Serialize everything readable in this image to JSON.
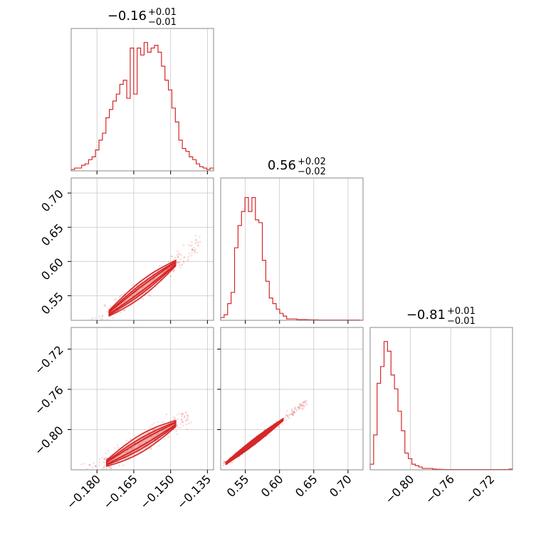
{
  "chart_data": {
    "type": "corner",
    "color": "#d62728",
    "parameters": [
      {
        "title_main": "−0.16",
        "title_plus": "+0.01",
        "title_minus": "−0.01",
        "range": [
          -0.1905,
          -0.1325
        ],
        "ticks": [
          -0.18,
          -0.165,
          -0.15,
          -0.135
        ],
        "tick_labels": [
          "−0.180",
          "−0.165",
          "−0.150",
          "−0.135"
        ]
      },
      {
        "title_main": "0.56",
        "title_plus": "+0.02",
        "title_minus": "−0.02",
        "range": [
          0.514,
          0.722
        ],
        "ticks": [
          0.55,
          0.6,
          0.65,
          0.7
        ],
        "tick_labels": [
          "0.55",
          "0.60",
          "0.65",
          "0.70"
        ]
      },
      {
        "title_main": "−0.81",
        "title_plus": "+0.01",
        "title_minus": "−0.01",
        "range": [
          -0.84,
          -0.6985
        ],
        "ticks": [
          -0.8,
          -0.76,
          -0.72
        ],
        "tick_labels": [
          "−0.80",
          "−0.76",
          "−0.72"
        ]
      }
    ],
    "histograms": [
      [
        0.01,
        0.02,
        0.02,
        0.04,
        0.05,
        0.08,
        0.1,
        0.15,
        0.22,
        0.27,
        0.38,
        0.44,
        0.5,
        0.55,
        0.62,
        0.65,
        0.52,
        0.88,
        0.55,
        0.88,
        0.83,
        0.92,
        0.85,
        0.88,
        0.9,
        0.85,
        0.75,
        0.65,
        0.58,
        0.45,
        0.35,
        0.22,
        0.16,
        0.14,
        0.1,
        0.08,
        0.05,
        0.03,
        0.02,
        0.01,
        0.02
      ],
      [
        0.02,
        0.04,
        0.12,
        0.2,
        0.52,
        0.68,
        0.78,
        0.88,
        0.78,
        0.88,
        0.72,
        0.7,
        0.43,
        0.28,
        0.16,
        0.12,
        0.08,
        0.05,
        0.03,
        0.01,
        0.01,
        0.01,
        0.005,
        0.005,
        0.005,
        0.004,
        0.003,
        0.003,
        0.002,
        0.002,
        0.002,
        0.002,
        0.002,
        0.002,
        0.002,
        0.002,
        0.002,
        0.002,
        0.002,
        0.002,
        0.001
      ],
      [
        0.04,
        0.25,
        0.62,
        0.74,
        0.92,
        0.85,
        0.68,
        0.58,
        0.42,
        0.28,
        0.12,
        0.08,
        0.04,
        0.03,
        0.02,
        0.01,
        0.01,
        0.01,
        0.005,
        0.004,
        0.003,
        0.002,
        0.002,
        0.002,
        0.002,
        0.002,
        0.002,
        0.002,
        0.002,
        0.002,
        0.002,
        0.002,
        0.002,
        0.002,
        0.002,
        0.002,
        0.002,
        0.002,
        0.002,
        0.002,
        0.005
      ]
    ],
    "correlations": [
      {
        "x_param": 0,
        "y_param": 1,
        "center": [
          -0.16,
          0.565
        ],
        "slope": 2.7,
        "scatter_extent": [
          -0.188,
          -0.138
        ],
        "density_extent": [
          -0.175,
          -0.148
        ],
        "contour_width": 0.012
      },
      {
        "x_param": 0,
        "y_param": 2,
        "center": [
          -0.16,
          -0.811
        ],
        "slope": 1.4,
        "scatter_extent": [
          -0.188,
          -0.142
        ],
        "density_extent": [
          -0.176,
          -0.148
        ],
        "contour_width": 0.009
      },
      {
        "x_param": 1,
        "y_param": 2,
        "center": [
          0.565,
          -0.811
        ],
        "slope": 0.52,
        "scatter_extent": [
          0.518,
          0.64
        ],
        "density_extent": [
          0.522,
          0.605
        ],
        "contour_width": 0.003
      }
    ]
  }
}
